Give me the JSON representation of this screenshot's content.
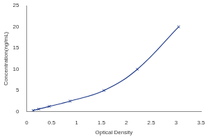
{
  "chart_data": {
    "type": "scatter",
    "x_label": "Optical Density",
    "y_label": "Concentration(ng/mL)",
    "x": [
      0.13,
      0.24,
      0.45,
      0.87,
      1.55,
      2.22,
      3.05
    ],
    "values": [
      0.31,
      0.63,
      1.25,
      2.5,
      5,
      10,
      20
    ],
    "color": "#1f3a8a",
    "marker": "cross",
    "line_style": "solid",
    "xlim": [
      0,
      3.5
    ],
    "xticks": [
      0,
      0.5,
      1,
      1.5,
      2,
      2.5,
      3,
      3.5
    ],
    "ylim": [
      0,
      25
    ],
    "yticks": [
      0,
      5,
      10,
      15,
      20,
      25
    ],
    "grid": false
  }
}
